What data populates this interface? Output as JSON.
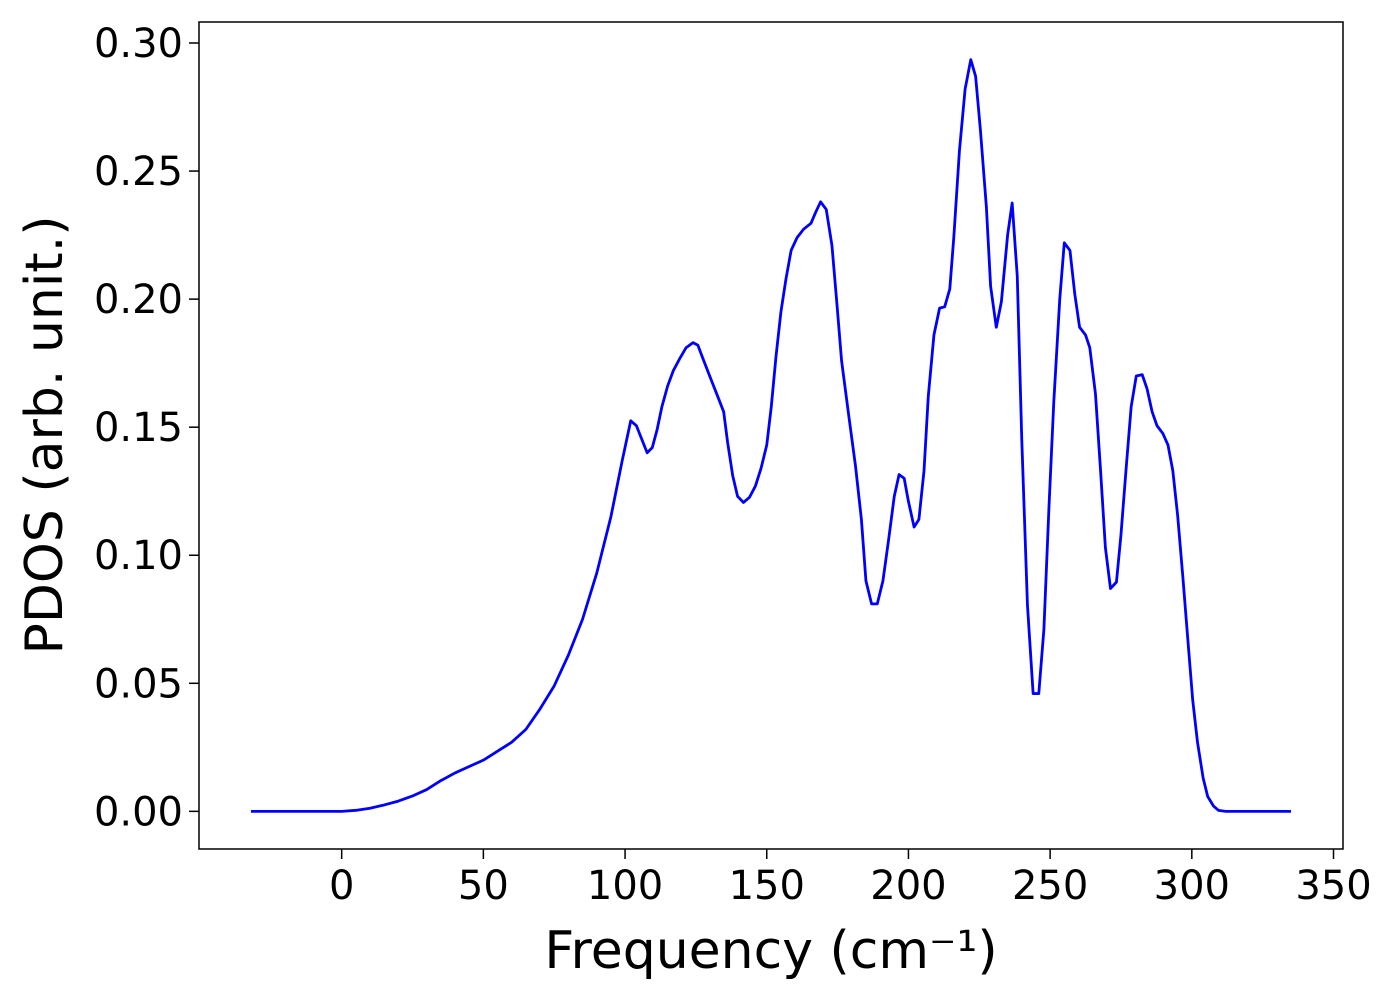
{
  "chart_data": {
    "type": "line",
    "xlabel": "Frequency (cm⁻¹)",
    "ylabel": "PDOS (arb. unit.)",
    "color": "#0000ff",
    "xlim": [
      -50.35,
      353.35
    ],
    "ylim": [
      -0.0147,
      0.3082
    ],
    "xticks": [
      0,
      50,
      100,
      150,
      200,
      250,
      300,
      350
    ],
    "yticks": [
      {
        "value": 0,
        "label": "0.00"
      },
      {
        "value": 0.05,
        "label": "0.05"
      },
      {
        "value": 0.1,
        "label": "0.10"
      },
      {
        "value": 0.15,
        "label": "0.15"
      },
      {
        "value": 0.2,
        "label": "0.20"
      },
      {
        "value": 0.25,
        "label": "0.25"
      },
      {
        "value": 0.3,
        "label": "0.30"
      }
    ],
    "x": [
      -32,
      -20,
      -10,
      0,
      5,
      10,
      15,
      20,
      25,
      30,
      35,
      40,
      45,
      50,
      55,
      60,
      65,
      70,
      75,
      80,
      85,
      90,
      95,
      99,
      102,
      104,
      106,
      107.8,
      109.6,
      111.3,
      113,
      115,
      117,
      119.4,
      121.5,
      124,
      125.7,
      127.4,
      129.5,
      132.7,
      134.8,
      136.2,
      138,
      139.7,
      141.8,
      143.9,
      146,
      148,
      150,
      151.6,
      153.3,
      155,
      156.8,
      158.6,
      160.7,
      163,
      165.6,
      167.3,
      169,
      171,
      173,
      174.7,
      176.4,
      179,
      181.3,
      183.4,
      185,
      187,
      189,
      191,
      193,
      195,
      196.7,
      198.5,
      200,
      202,
      203.7,
      205.5,
      207,
      209,
      211,
      212.8,
      214.6,
      216,
      218,
      220,
      222,
      223.7,
      225.4,
      227.5,
      229,
      231,
      232.8,
      235,
      236.6,
      238.4,
      240,
      242,
      244,
      246,
      247.8,
      249.6,
      251.3,
      253.4,
      255,
      257,
      258.7,
      260.4,
      262.5,
      264,
      266,
      267.8,
      269.5,
      271.3,
      273.4,
      275,
      276.9,
      278.6,
      280.4,
      282.5,
      284.2,
      286,
      287.7,
      289.8,
      291.6,
      293.3,
      295,
      296.8,
      298.6,
      300.3,
      302,
      304,
      305.6,
      307.7,
      309.4,
      312,
      320,
      335
    ],
    "values": [
      0,
      0,
      0,
      0,
      0.0004,
      0.0012,
      0.0025,
      0.004,
      0.006,
      0.0085,
      0.012,
      0.015,
      0.0175,
      0.02,
      0.0235,
      0.027,
      0.032,
      0.04,
      0.049,
      0.061,
      0.075,
      0.093,
      0.115,
      0.137,
      0.1525,
      0.1506,
      0.145,
      0.14,
      0.142,
      0.149,
      0.158,
      0.166,
      0.172,
      0.177,
      0.181,
      0.183,
      0.182,
      0.177,
      0.171,
      0.162,
      0.156,
      0.144,
      0.131,
      0.123,
      0.1206,
      0.1226,
      0.127,
      0.134,
      0.143,
      0.158,
      0.178,
      0.195,
      0.208,
      0.219,
      0.224,
      0.2273,
      0.2296,
      0.234,
      0.238,
      0.235,
      0.221,
      0.199,
      0.176,
      0.154,
      0.135,
      0.114,
      0.09,
      0.081,
      0.081,
      0.09,
      0.106,
      0.123,
      0.1315,
      0.13,
      0.121,
      0.111,
      0.114,
      0.133,
      0.162,
      0.186,
      0.1965,
      0.197,
      0.204,
      0.224,
      0.258,
      0.282,
      0.2935,
      0.287,
      0.266,
      0.236,
      0.205,
      0.189,
      0.199,
      0.225,
      0.2375,
      0.209,
      0.145,
      0.0805,
      0.046,
      0.046,
      0.071,
      0.119,
      0.16,
      0.2,
      0.222,
      0.219,
      0.202,
      0.189,
      0.186,
      0.181,
      0.163,
      0.133,
      0.103,
      0.087,
      0.0895,
      0.108,
      0.135,
      0.158,
      0.17,
      0.1705,
      0.165,
      0.156,
      0.1506,
      0.1475,
      0.143,
      0.133,
      0.1155,
      0.092,
      0.067,
      0.0436,
      0.027,
      0.013,
      0.0058,
      0.002,
      0.0004,
      0,
      0,
      0
    ]
  }
}
